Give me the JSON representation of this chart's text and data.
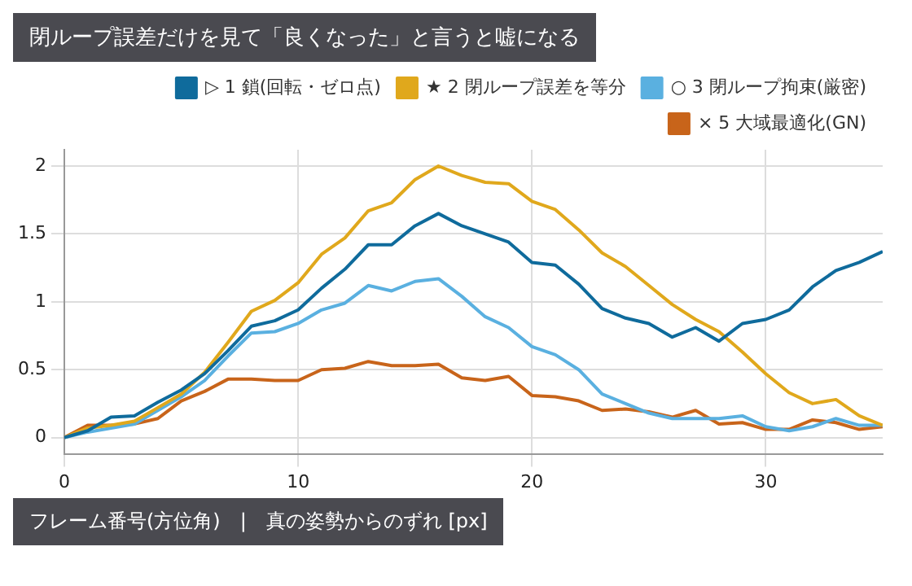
{
  "chart_data": {
    "type": "line",
    "title": "閉ループ誤差だけを見て「良くなった」と言うと嘘になる",
    "xlabel": "フレーム番号(方位角)　|　真の姿勢からのずれ [px]",
    "x": [
      0,
      1,
      2,
      3,
      4,
      5,
      6,
      7,
      8,
      9,
      10,
      11,
      12,
      13,
      14,
      15,
      16,
      17,
      18,
      19,
      20,
      21,
      22,
      23,
      24,
      25,
      26,
      27,
      28,
      29,
      30,
      31,
      32,
      33,
      34,
      35
    ],
    "series": [
      {
        "name": "▷ 1 鎖(回転・ゼロ点)",
        "color": "#0f6b9c",
        "values": [
          0,
          0.05,
          0.15,
          0.16,
          0.26,
          0.35,
          0.47,
          0.64,
          0.82,
          0.86,
          0.94,
          1.1,
          1.24,
          1.42,
          1.42,
          1.56,
          1.65,
          1.56,
          1.5,
          1.44,
          1.29,
          1.27,
          1.13,
          0.95,
          0.88,
          0.84,
          0.74,
          0.81,
          0.71,
          0.84,
          0.87,
          0.94,
          1.11,
          1.23,
          1.29,
          1.37
        ]
      },
      {
        "name": "★ 2 閉ループ誤差を等分",
        "color": "#e0a81c",
        "values": [
          0,
          0.07,
          0.09,
          0.12,
          0.22,
          0.32,
          0.48,
          0.7,
          0.93,
          1.01,
          1.14,
          1.35,
          1.47,
          1.67,
          1.73,
          1.9,
          2.0,
          1.93,
          1.88,
          1.87,
          1.74,
          1.68,
          1.53,
          1.36,
          1.26,
          1.12,
          0.98,
          0.87,
          0.78,
          0.63,
          0.47,
          0.33,
          0.25,
          0.28,
          0.16,
          0.09
        ]
      },
      {
        "name": "○ 3 閉ループ拘束(厳密)",
        "color": "#5ab0e0",
        "values": [
          0,
          0.04,
          0.07,
          0.1,
          0.2,
          0.3,
          0.42,
          0.6,
          0.77,
          0.78,
          0.84,
          0.94,
          0.99,
          1.12,
          1.08,
          1.15,
          1.17,
          1.04,
          0.89,
          0.81,
          0.67,
          0.61,
          0.5,
          0.32,
          0.25,
          0.18,
          0.14,
          0.14,
          0.14,
          0.16,
          0.08,
          0.05,
          0.08,
          0.14,
          0.09,
          0.09
        ]
      },
      {
        "name": "× 5 大域最適化(GN)",
        "color": "#c8641a",
        "values": [
          0,
          0.09,
          0.09,
          0.1,
          0.14,
          0.27,
          0.34,
          0.43,
          0.43,
          0.42,
          0.42,
          0.5,
          0.51,
          0.56,
          0.53,
          0.53,
          0.54,
          0.44,
          0.42,
          0.45,
          0.31,
          0.3,
          0.27,
          0.2,
          0.21,
          0.19,
          0.15,
          0.2,
          0.1,
          0.11,
          0.06,
          0.06,
          0.13,
          0.11,
          0.06,
          0.08
        ]
      }
    ],
    "xlim": [
      0,
      35
    ],
    "xticks": [
      0,
      10,
      20,
      30
    ],
    "ylim": [
      -0.12,
      2.12
    ],
    "yticks": [
      0,
      0.5,
      1,
      1.5,
      2
    ],
    "grid": true,
    "legend": "top right"
  }
}
